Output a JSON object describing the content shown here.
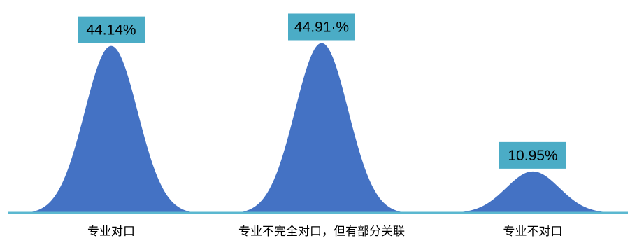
{
  "chart_data": {
    "type": "area",
    "title": "",
    "xlabel": "",
    "ylabel": "",
    "categories": [
      "专业对口",
      "专业不完全对口，但有部分关联",
      "专业不对口"
    ],
    "values": [
      44.14,
      44.91,
      10.95
    ],
    "data_labels": [
      "44.14%",
      "44.91·%",
      "10.95%"
    ],
    "ylim": [
      0,
      50
    ],
    "grid": false,
    "legend": "none"
  },
  "colors": {
    "peak_fill": "#4472C4",
    "baseline": "#5BB8D0",
    "label_box": "#4BACC6"
  }
}
